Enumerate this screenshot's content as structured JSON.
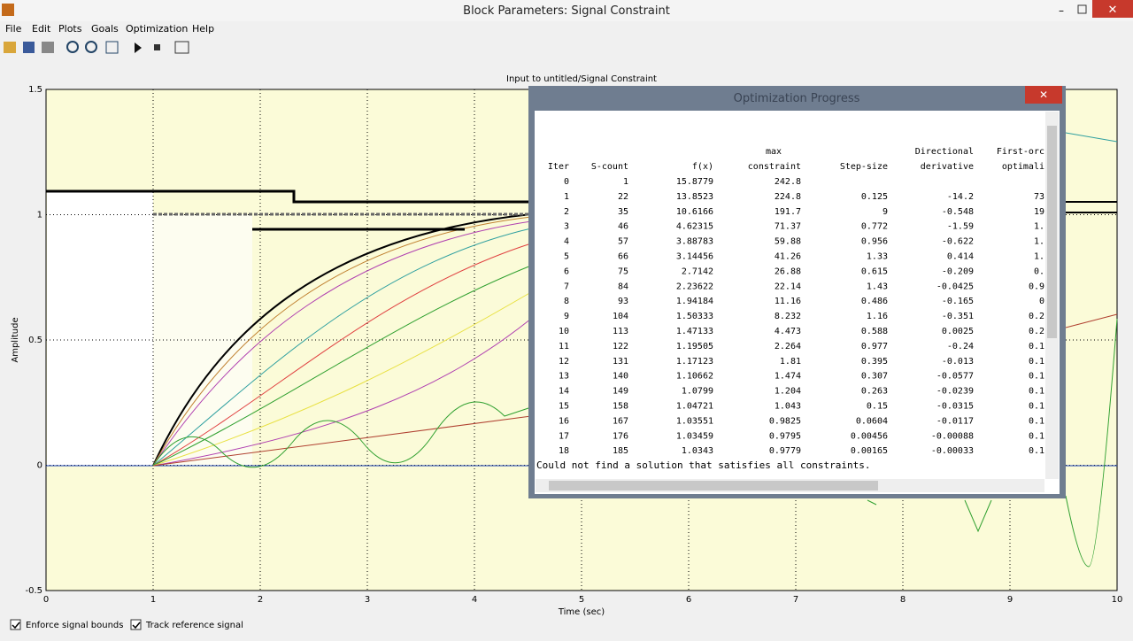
{
  "window": {
    "title": "Block Parameters: Signal Constraint"
  },
  "menu": [
    "File",
    "Edit",
    "Plots",
    "Goals",
    "Optimization",
    "Help"
  ],
  "plot": {
    "title": "Input to untitled/Signal Constraint",
    "xlabel": "Time (sec)",
    "ylabel": "Amplitude",
    "xlim": [
      0,
      10
    ],
    "ylim": [
      -0.5,
      1.5
    ],
    "xticks": [
      0,
      1,
      2,
      3,
      4,
      5,
      6,
      7,
      8,
      9,
      10
    ],
    "yticks": [
      -0.5,
      0,
      0.5,
      1,
      1.5
    ]
  },
  "dialog": {
    "title": "Optimization Progress",
    "header_top": [
      "max",
      "Directional",
      "First-orc"
    ],
    "header": [
      "Iter",
      "S-count",
      "f(x)",
      "constraint",
      "Step-size",
      "derivative",
      "optimali"
    ],
    "rows": [
      [
        "0",
        "1",
        "15.8779",
        "242.8"
      ],
      [
        "1",
        "22",
        "13.8523",
        "224.8",
        "0.125",
        "-14.2",
        "73"
      ],
      [
        "2",
        "35",
        "10.6166",
        "191.7",
        "9",
        "-0.548",
        "19"
      ],
      [
        "3",
        "46",
        "4.62315",
        "71.37",
        "0.772",
        "-1.59",
        "1."
      ],
      [
        "4",
        "57",
        "3.88783",
        "59.88",
        "0.956",
        "-0.622",
        "1."
      ],
      [
        "5",
        "66",
        "3.14456",
        "41.26",
        "1.33",
        "0.414",
        "1."
      ],
      [
        "6",
        "75",
        "2.7142",
        "26.88",
        "0.615",
        "-0.209",
        "0."
      ],
      [
        "7",
        "84",
        "2.23622",
        "22.14",
        "1.43",
        "-0.0425",
        "0.9"
      ],
      [
        "8",
        "93",
        "1.94184",
        "11.16",
        "0.486",
        "-0.165",
        "0"
      ],
      [
        "9",
        "104",
        "1.50333",
        "8.232",
        "1.16",
        "-0.351",
        "0.2"
      ],
      [
        "10",
        "113",
        "1.47133",
        "4.473",
        "0.588",
        "0.0025",
        "0.2"
      ],
      [
        "11",
        "122",
        "1.19505",
        "2.264",
        "0.977",
        "-0.24",
        "0.1"
      ],
      [
        "12",
        "131",
        "1.17123",
        "1.81",
        "0.395",
        "-0.013",
        "0.1"
      ],
      [
        "13",
        "140",
        "1.10662",
        "1.474",
        "0.307",
        "-0.0577",
        "0.1"
      ],
      [
        "14",
        "149",
        "1.0799",
        "1.204",
        "0.263",
        "-0.0239",
        "0.1"
      ],
      [
        "15",
        "158",
        "1.04721",
        "1.043",
        "0.15",
        "-0.0315",
        "0.1"
      ],
      [
        "16",
        "167",
        "1.03551",
        "0.9825",
        "0.0604",
        "-0.0117",
        "0.1"
      ],
      [
        "17",
        "176",
        "1.03459",
        "0.9795",
        "0.00456",
        "-0.00088",
        "0.1"
      ],
      [
        "18",
        "185",
        "1.0343",
        "0.9779",
        "0.00165",
        "-0.00033",
        "0.1"
      ]
    ],
    "message": "Could not find a solution that satisfies all constraints."
  },
  "checkboxes": [
    "Enforce signal bounds",
    "Track reference signal"
  ]
}
